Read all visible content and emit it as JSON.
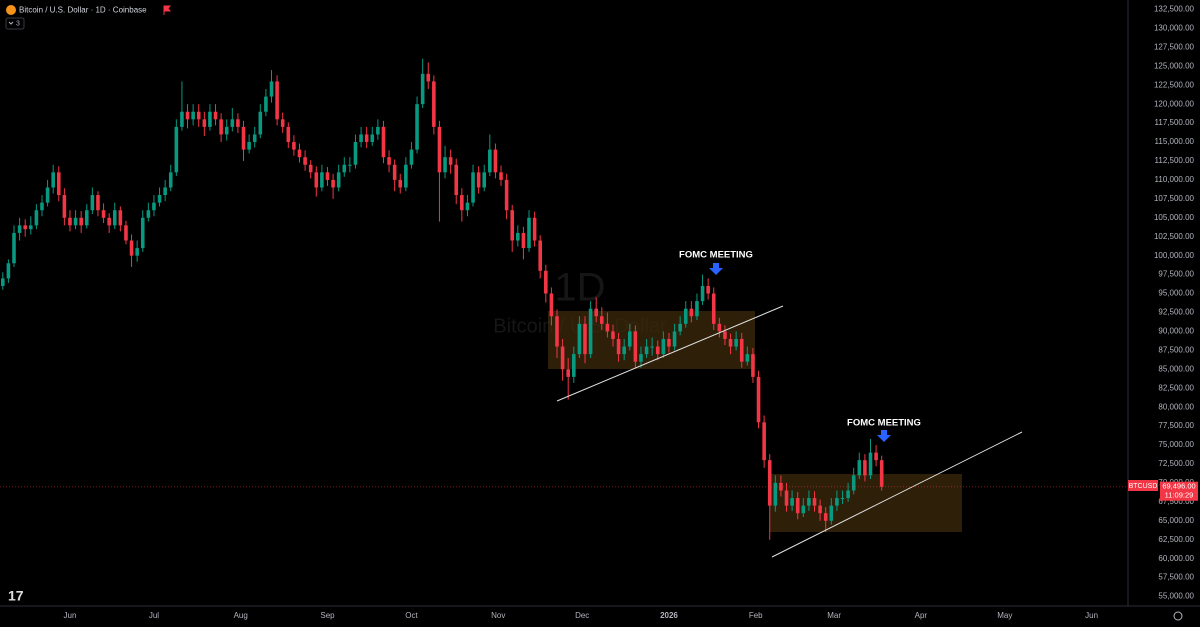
{
  "chart_data": {
    "type": "candlestick",
    "title": "Bitcoin / U.S. Dollar · 1D · Coinbase",
    "indicator_count": "3",
    "watermark": {
      "interval": "1D",
      "symbol": "Bitcoin / U.S. Dollar"
    },
    "annotations": [
      "FOMC MEETING",
      "FOMC MEETING"
    ],
    "last_price": {
      "value": 69496,
      "label": "69,496.00",
      "countdown": "11:09:29"
    },
    "grid": false,
    "xlim": [
      0,
      201.5
    ],
    "xticks": [
      {
        "value": 12.5,
        "label": "Jun"
      },
      {
        "value": 27.5,
        "label": "Jul"
      },
      {
        "value": 43,
        "label": "Aug"
      },
      {
        "value": 58.5,
        "label": "Sep"
      },
      {
        "value": 73.5,
        "label": "Oct"
      },
      {
        "value": 89,
        "label": "Nov"
      },
      {
        "value": 104,
        "label": "Dec"
      },
      {
        "value": 119.5,
        "label": "2026"
      },
      {
        "value": 135,
        "label": "Feb"
      },
      {
        "value": 149,
        "label": "Mar"
      },
      {
        "value": 164.5,
        "label": "Apr"
      },
      {
        "value": 179.5,
        "label": "May"
      },
      {
        "value": 195,
        "label": "Jun"
      }
    ],
    "ylim": [
      53750,
      133750
    ],
    "yticks": [
      {
        "value": 55000,
        "label": "55,000.00"
      },
      {
        "value": 57500,
        "label": "57,500.00"
      },
      {
        "value": 60000,
        "label": "60,000.00"
      },
      {
        "value": 62500,
        "label": "62,500.00"
      },
      {
        "value": 65000,
        "label": "65,000.00"
      },
      {
        "value": 67500,
        "label": "67,500.00"
      },
      {
        "value": 70000,
        "label": "70,000.00"
      },
      {
        "value": 72500,
        "label": "72,500.00"
      },
      {
        "value": 75000,
        "label": "75,000.00"
      },
      {
        "value": 77500,
        "label": "77,500.00"
      },
      {
        "value": 80000,
        "label": "80,000.00"
      },
      {
        "value": 82500,
        "label": "82,500.00"
      },
      {
        "value": 85000,
        "label": "85,000.00"
      },
      {
        "value": 87500,
        "label": "87,500.00"
      },
      {
        "value": 90000,
        "label": "90,000.00"
      },
      {
        "value": 92500,
        "label": "92,500.00"
      },
      {
        "value": 95000,
        "label": "95,000.00"
      },
      {
        "value": 97500,
        "label": "97,500.00"
      },
      {
        "value": 100000,
        "label": "100,000.00"
      },
      {
        "value": 102500,
        "label": "102,500.00"
      },
      {
        "value": 105000,
        "label": "105,000.00"
      },
      {
        "value": 107500,
        "label": "107,500.00"
      },
      {
        "value": 110000,
        "label": "110,000.00"
      },
      {
        "value": 112500,
        "label": "112,500.00"
      },
      {
        "value": 115000,
        "label": "115,000.00"
      },
      {
        "value": 117500,
        "label": "117,500.00"
      },
      {
        "value": 120000,
        "label": "120,000.00"
      },
      {
        "value": 122500,
        "label": "122,500.00"
      },
      {
        "value": 125000,
        "label": "125,000.00"
      },
      {
        "value": 127500,
        "label": "127,500.00"
      },
      {
        "value": 130000,
        "label": "130,000.00"
      },
      {
        "value": 132500,
        "label": "132,500.00"
      }
    ],
    "series": [
      {
        "name": "BTCUSD",
        "up_color": "#089981",
        "down_color": "#f23645",
        "values": [
          [
            96000,
            97800,
            95500,
            97000
          ],
          [
            97000,
            99500,
            96400,
            99000
          ],
          [
            99000,
            104000,
            98500,
            103000
          ],
          [
            103000,
            105000,
            102000,
            104000
          ],
          [
            104000,
            104800,
            102500,
            103500
          ],
          [
            103500,
            105200,
            102800,
            104000
          ],
          [
            104000,
            106800,
            103500,
            106000
          ],
          [
            106000,
            108000,
            105200,
            107000
          ],
          [
            107000,
            110000,
            106500,
            109000
          ],
          [
            109000,
            112000,
            108200,
            111000
          ],
          [
            111000,
            111800,
            107200,
            108000
          ],
          [
            108000,
            108900,
            104000,
            105000
          ],
          [
            105000,
            106000,
            103200,
            104000
          ],
          [
            104000,
            106000,
            103500,
            105000
          ],
          [
            105000,
            105900,
            103000,
            104000
          ],
          [
            104000,
            106800,
            103600,
            106000
          ],
          [
            106000,
            109000,
            105500,
            108000
          ],
          [
            108000,
            108500,
            105200,
            106000
          ],
          [
            106000,
            106900,
            104300,
            105000
          ],
          [
            105000,
            105600,
            103000,
            104000
          ],
          [
            104000,
            107000,
            103500,
            106000
          ],
          [
            106000,
            106500,
            103200,
            104000
          ],
          [
            104000,
            104600,
            101500,
            102000
          ],
          [
            102000,
            102800,
            98500,
            100000
          ],
          [
            100000,
            102000,
            99200,
            101000
          ],
          [
            101000,
            106000,
            100500,
            105000
          ],
          [
            105000,
            107000,
            104500,
            106000
          ],
          [
            106000,
            108000,
            105200,
            107000
          ],
          [
            107000,
            109000,
            106500,
            108000
          ],
          [
            108000,
            110000,
            107200,
            109000
          ],
          [
            109000,
            112000,
            108500,
            111000
          ],
          [
            111000,
            118000,
            110500,
            117000
          ],
          [
            117000,
            123000,
            116500,
            119000
          ],
          [
            119000,
            120000,
            116800,
            118000
          ],
          [
            118000,
            120000,
            117200,
            119000
          ],
          [
            119000,
            120000,
            117000,
            118000
          ],
          [
            118000,
            119000,
            115800,
            117000
          ],
          [
            117000,
            120000,
            116500,
            119000
          ],
          [
            119000,
            120000,
            117200,
            118000
          ],
          [
            118000,
            118800,
            115000,
            116000
          ],
          [
            116000,
            118000,
            115200,
            117000
          ],
          [
            117000,
            119500,
            116400,
            118000
          ],
          [
            118000,
            118800,
            116200,
            117000
          ],
          [
            117000,
            117800,
            112500,
            114000
          ],
          [
            114000,
            116000,
            113500,
            115000
          ],
          [
            115000,
            117000,
            114300,
            116000
          ],
          [
            116000,
            120000,
            115500,
            119000
          ],
          [
            119000,
            122000,
            118400,
            121000
          ],
          [
            121000,
            124500,
            120200,
            123000
          ],
          [
            123000,
            123800,
            117200,
            118000
          ],
          [
            118000,
            118900,
            116200,
            117000
          ],
          [
            117000,
            117600,
            114200,
            115000
          ],
          [
            115000,
            115900,
            113200,
            114000
          ],
          [
            114000,
            114800,
            112300,
            113000
          ],
          [
            113000,
            113900,
            111200,
            112000
          ],
          [
            112000,
            112600,
            110200,
            111000
          ],
          [
            111000,
            111800,
            107800,
            109000
          ],
          [
            109000,
            112000,
            108500,
            111000
          ],
          [
            111000,
            111700,
            109200,
            110000
          ],
          [
            110000,
            110800,
            107500,
            109000
          ],
          [
            109000,
            112000,
            108500,
            111000
          ],
          [
            111000,
            113000,
            110400,
            112000
          ],
          [
            112000,
            113000,
            111000,
            112000
          ],
          [
            112000,
            116000,
            111500,
            115000
          ],
          [
            115000,
            117000,
            114300,
            116000
          ],
          [
            116000,
            117000,
            114200,
            115000
          ],
          [
            115000,
            117000,
            114500,
            116000
          ],
          [
            116000,
            118000,
            115300,
            117000
          ],
          [
            117000,
            117800,
            112200,
            113000
          ],
          [
            113000,
            113900,
            111000,
            112000
          ],
          [
            112000,
            112700,
            108500,
            110000
          ],
          [
            110000,
            110800,
            108200,
            109000
          ],
          [
            109000,
            113000,
            108500,
            112000
          ],
          [
            112000,
            115000,
            111500,
            114000
          ],
          [
            114000,
            121000,
            113500,
            120000
          ],
          [
            120000,
            126000,
            119500,
            124000
          ],
          [
            124000,
            125500,
            122000,
            123000
          ],
          [
            123000,
            123800,
            116000,
            117000
          ],
          [
            117000,
            117800,
            104500,
            111000
          ],
          [
            111000,
            114500,
            110200,
            113000
          ],
          [
            113000,
            114000,
            110800,
            112000
          ],
          [
            112000,
            112800,
            106800,
            108000
          ],
          [
            108000,
            108900,
            104500,
            106000
          ],
          [
            106000,
            108000,
            105200,
            107000
          ],
          [
            107000,
            112000,
            106500,
            111000
          ],
          [
            111000,
            111800,
            108200,
            109000
          ],
          [
            109000,
            112000,
            108500,
            111000
          ],
          [
            111000,
            116000,
            110500,
            114000
          ],
          [
            114000,
            114800,
            110200,
            111000
          ],
          [
            111000,
            111900,
            109200,
            110000
          ],
          [
            110000,
            110800,
            104800,
            106000
          ],
          [
            106000,
            106700,
            100500,
            102000
          ],
          [
            102000,
            104000,
            101200,
            103000
          ],
          [
            103000,
            103800,
            99500,
            101000
          ],
          [
            101000,
            106000,
            100500,
            105000
          ],
          [
            105000,
            105800,
            101200,
            102000
          ],
          [
            102000,
            102700,
            97000,
            98000
          ],
          [
            98000,
            98800,
            93800,
            95000
          ],
          [
            95000,
            95800,
            90800,
            92000
          ],
          [
            92000,
            92900,
            86500,
            88000
          ],
          [
            88000,
            89000,
            83500,
            85000
          ],
          [
            85000,
            86500,
            81000,
            84000
          ],
          [
            84000,
            88000,
            83200,
            87000
          ],
          [
            87000,
            92000,
            86500,
            91000
          ],
          [
            91000,
            92000,
            85800,
            87000
          ],
          [
            87000,
            94000,
            86500,
            93000
          ],
          [
            93000,
            94500,
            91200,
            92000
          ],
          [
            92000,
            93200,
            90200,
            91000
          ],
          [
            91000,
            92500,
            89200,
            90000
          ],
          [
            90000,
            90900,
            88000,
            89000
          ],
          [
            89000,
            89800,
            86000,
            87000
          ],
          [
            87000,
            89000,
            86200,
            88000
          ],
          [
            88000,
            91000,
            87500,
            90000
          ],
          [
            90000,
            90800,
            85200,
            86000
          ],
          [
            86000,
            88000,
            85200,
            87000
          ],
          [
            87000,
            89000,
            86500,
            88000
          ],
          [
            88000,
            89200,
            86800,
            88000
          ],
          [
            88000,
            88800,
            86200,
            87000
          ],
          [
            87000,
            90000,
            86500,
            89000
          ],
          [
            89000,
            89800,
            87200,
            88000
          ],
          [
            88000,
            91000,
            87500,
            90000
          ],
          [
            90000,
            92000,
            89500,
            91000
          ],
          [
            91000,
            94000,
            90500,
            93000
          ],
          [
            93000,
            94000,
            91200,
            92000
          ],
          [
            92000,
            95000,
            91500,
            94000
          ],
          [
            94000,
            97500,
            93500,
            96000
          ],
          [
            96000,
            97000,
            94200,
            95000
          ],
          [
            95000,
            95800,
            90200,
            91000
          ],
          [
            91000,
            91800,
            89200,
            90000
          ],
          [
            90000,
            90800,
            88200,
            89000
          ],
          [
            89000,
            89700,
            87000,
            88000
          ],
          [
            88000,
            90000,
            87500,
            89000
          ],
          [
            89000,
            89800,
            85200,
            86000
          ],
          [
            86000,
            88000,
            85500,
            87000
          ],
          [
            87000,
            87800,
            83200,
            84000
          ],
          [
            84000,
            84800,
            77200,
            78000
          ],
          [
            78000,
            78900,
            72000,
            73000
          ],
          [
            73000,
            73800,
            62500,
            67000
          ],
          [
            67000,
            71000,
            66200,
            70000
          ],
          [
            70000,
            71000,
            68200,
            69000
          ],
          [
            69000,
            70000,
            66200,
            67000
          ],
          [
            67000,
            69000,
            66300,
            68000
          ],
          [
            68000,
            68800,
            65200,
            66000
          ],
          [
            66000,
            68000,
            65500,
            67000
          ],
          [
            67000,
            69000,
            66300,
            68000
          ],
          [
            68000,
            68900,
            66200,
            67000
          ],
          [
            67000,
            67800,
            65000,
            66000
          ],
          [
            66000,
            66800,
            63500,
            65000
          ],
          [
            65000,
            68000,
            64500,
            67000
          ],
          [
            67000,
            69000,
            66300,
            68000
          ],
          [
            68000,
            69000,
            67200,
            68000
          ],
          [
            68000,
            70000,
            67500,
            69000
          ],
          [
            69000,
            72000,
            68500,
            71000
          ],
          [
            71000,
            74000,
            70500,
            73000
          ],
          [
            73000,
            73800,
            70200,
            71000
          ],
          [
            71000,
            75800,
            70500,
            74000
          ],
          [
            74000,
            75000,
            72200,
            73000
          ],
          [
            73000,
            73600,
            69000,
            69496
          ]
        ]
      }
    ]
  }
}
